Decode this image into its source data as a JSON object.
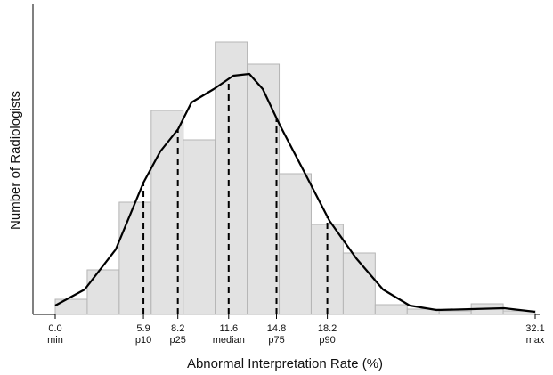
{
  "chart_data": {
    "type": "histogram",
    "x_label": "Abnormal Interpretation Rate (%)",
    "y_label": "Number of Radiologists",
    "bins": [
      0,
      2.14,
      4.28,
      6.42,
      8.56,
      10.7,
      12.84,
      14.98,
      17.12,
      19.26,
      21.4,
      23.54,
      25.68,
      27.82,
      29.96,
      32.1
    ],
    "values": [
      17,
      50,
      126,
      229,
      196,
      306,
      281,
      158,
      101,
      69,
      11,
      6,
      4,
      12,
      4
    ],
    "color": "#e2e2e2",
    "density": {
      "x": [
        0,
        1.97,
        4.05,
        5.9,
        7.03,
        8.22,
        9.11,
        10.6,
        11.91,
        12.98,
        13.88,
        15.01,
        16.56,
        18.35,
        20.13,
        21.92,
        23.71,
        25.5,
        27.87,
        30.02,
        32.1
      ],
      "values": [
        10,
        28,
        73,
        148,
        183,
        208,
        238,
        253,
        268,
        270,
        253,
        213,
        163,
        105,
        63,
        28,
        10,
        5,
        6,
        7,
        3
      ],
      "color": "#000000"
    },
    "xlim": [
      0,
      32.1
    ],
    "ylim": [
      0,
      348
    ],
    "xticks": [
      {
        "value": 0,
        "label": "0.0"
      },
      5.9,
      8.2,
      11.6,
      14.8,
      18.2,
      32.1
    ],
    "xtick_sublabels": [
      "min",
      "p10",
      "p25",
      "median",
      "p75",
      "p90",
      "max"
    ]
  }
}
